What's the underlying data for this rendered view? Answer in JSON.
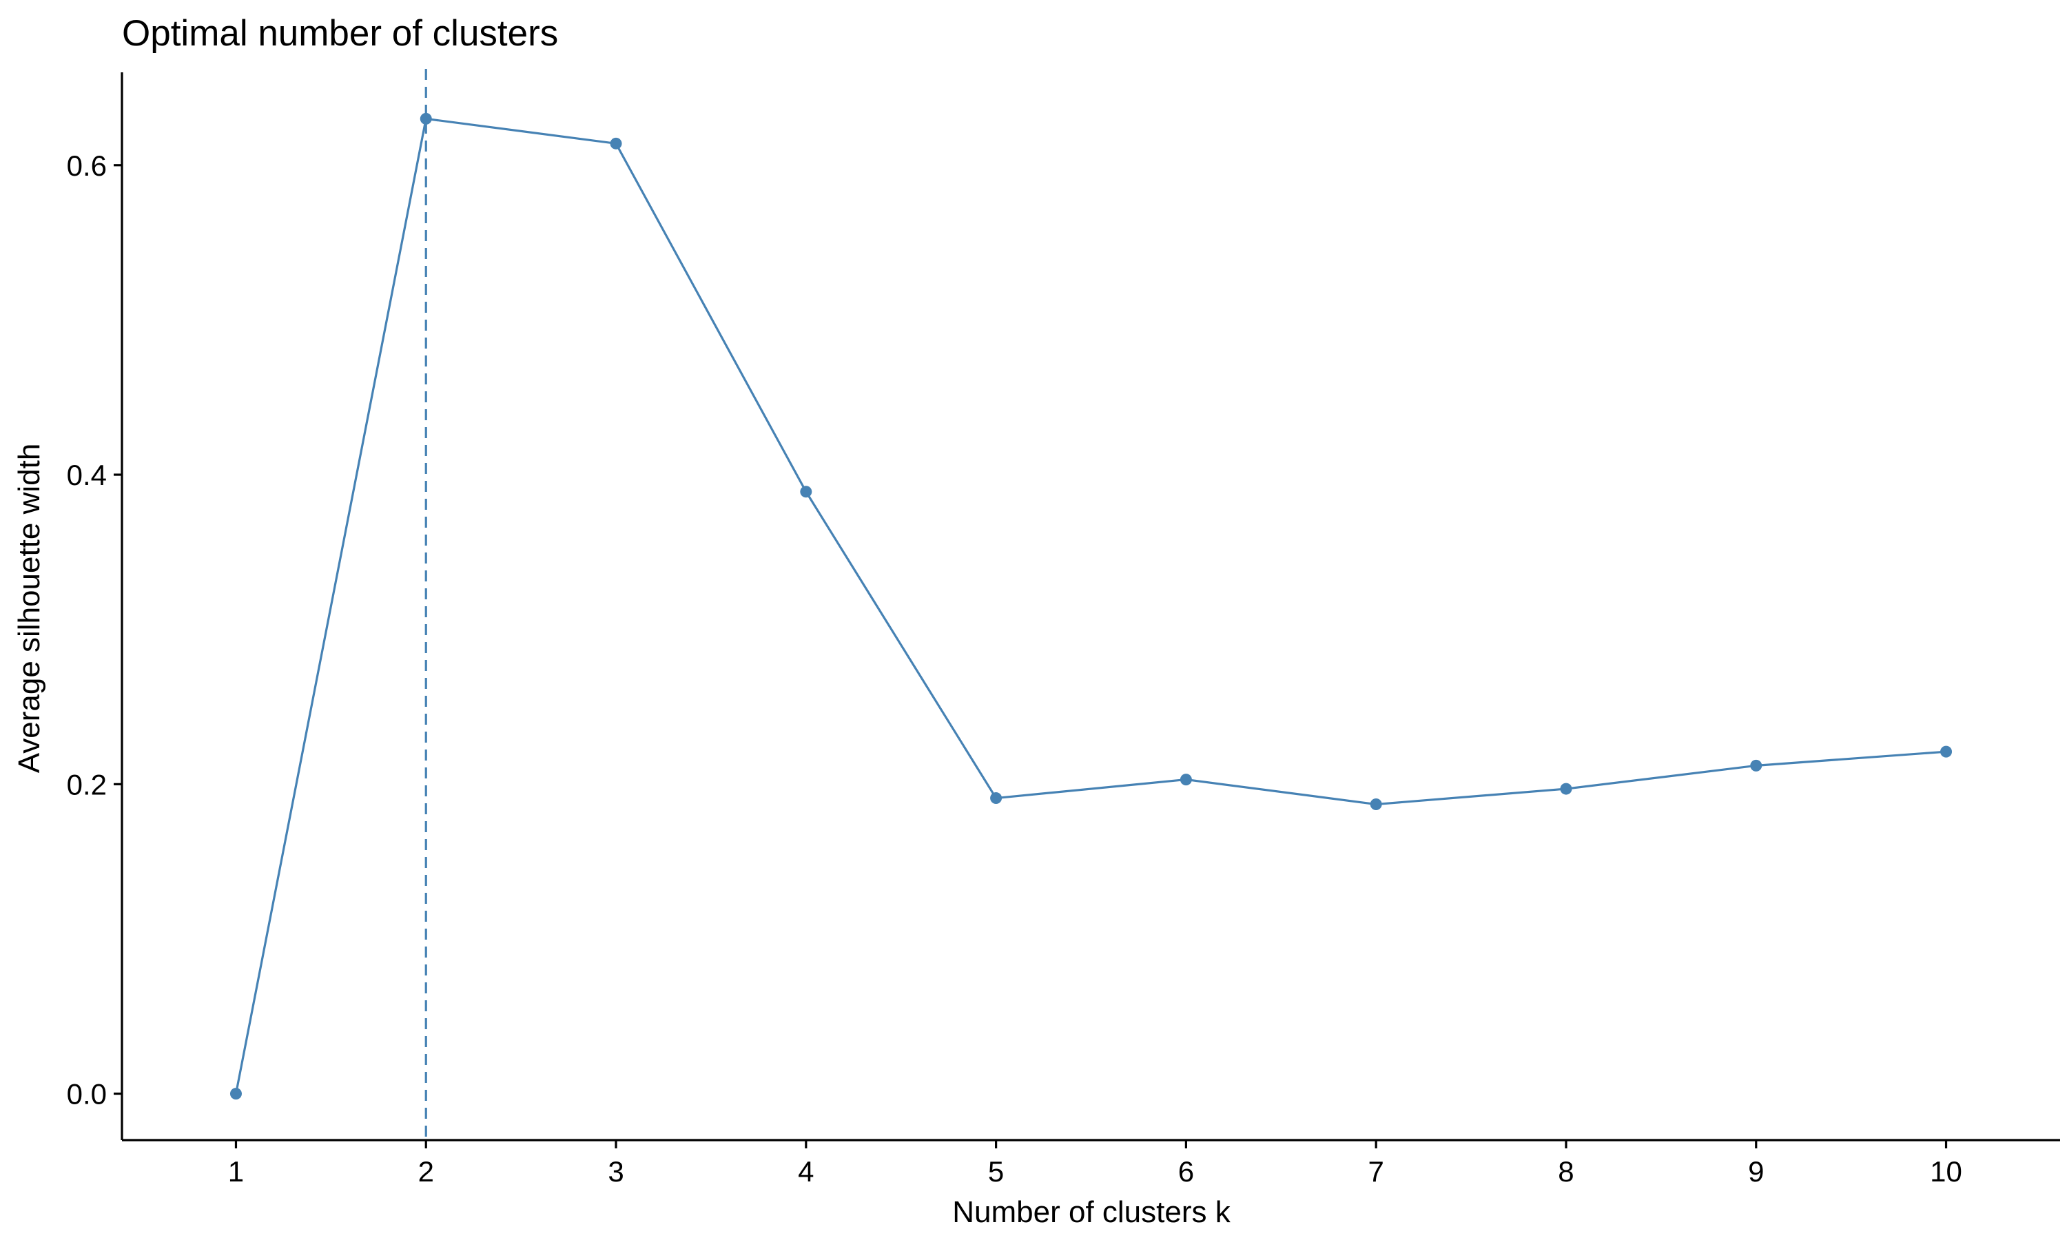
{
  "chart_data": {
    "type": "line",
    "title": "Optimal number of clusters",
    "xlabel": "Number of clusters k",
    "ylabel": "Average silhouette width",
    "categories": [
      "1",
      "2",
      "3",
      "4",
      "5",
      "6",
      "7",
      "8",
      "9",
      "10"
    ],
    "x": [
      1,
      2,
      3,
      4,
      5,
      6,
      7,
      8,
      9,
      10
    ],
    "values": [
      0.0,
      0.63,
      0.614,
      0.389,
      0.191,
      0.203,
      0.187,
      0.197,
      0.212,
      0.221
    ],
    "ylim": [
      -0.03,
      0.66
    ],
    "yticks": [
      0.0,
      0.2,
      0.4,
      0.6
    ],
    "ytick_labels": [
      "0.0",
      "0.2",
      "0.4",
      "0.6"
    ],
    "reference_line": {
      "orientation": "vertical",
      "x": 2,
      "style": "dashed"
    },
    "grid": false,
    "legend": "none",
    "colors": {
      "series": "#4682B4",
      "axis": "#000000"
    }
  }
}
